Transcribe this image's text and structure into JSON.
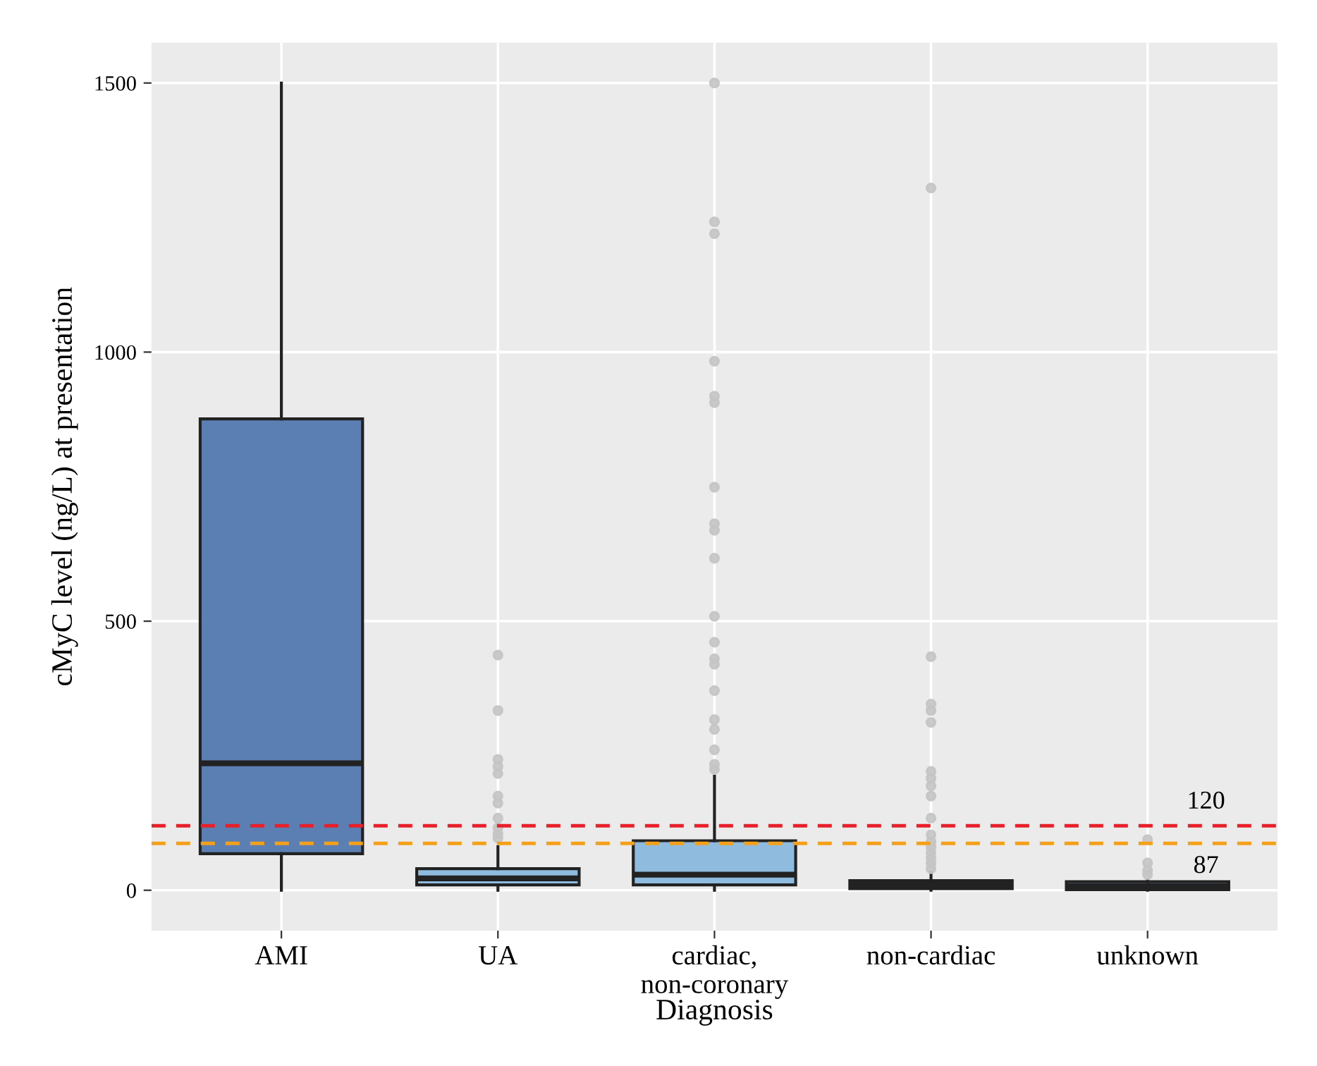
{
  "chart_data": {
    "type": "box",
    "xlabel": "Diagnosis",
    "ylabel": "cMyC level (ng/L) at presentation",
    "categories": [
      "AMI",
      "UA",
      "cardiac,\nnon-coronary",
      "non-cardiac",
      "unknown"
    ],
    "colors": [
      "#5b7fb3",
      "#8fbcde",
      "#8fbcde",
      "#8fbcde",
      "#8fbcde"
    ],
    "boxes": [
      {
        "low": 0,
        "q1": 68,
        "median": 236,
        "q3": 876,
        "high": 1500
      },
      {
        "low": 0,
        "q1": 10,
        "median": 22,
        "q3": 40,
        "high": 81,
        "outliers": [
          437,
          334,
          243,
          230,
          217,
          175,
          162,
          134,
          116,
          105,
          97
        ]
      },
      {
        "low": 0,
        "q1": 10,
        "median": 29,
        "q3": 92,
        "high": 212,
        "outliers": [
          1500,
          1242,
          1220,
          983,
          918,
          906,
          749,
          681,
          669,
          617,
          509,
          461,
          430,
          420,
          371,
          317,
          299,
          261,
          234,
          225
        ]
      },
      {
        "low": 0,
        "q1": 3,
        "median": 10,
        "q3": 18,
        "high": 33,
        "outliers": [
          1305,
          434,
          346,
          334,
          312,
          221,
          208,
          194,
          175,
          134,
          103,
          90,
          80,
          70,
          60,
          50,
          40
        ]
      },
      {
        "low": 0,
        "q1": 1,
        "median": 8,
        "q3": 16,
        "high": 20,
        "outliers": [
          94,
          51,
          37,
          29
        ]
      }
    ],
    "ylim": [
      -75,
      1575
    ],
    "yticks": [
      0,
      500,
      1000,
      1500
    ],
    "grid": true,
    "legend": false,
    "ref_lines": [
      {
        "axis": "y",
        "value": 120,
        "label": "120",
        "color": "#e8202a",
        "line_style": "dashed"
      },
      {
        "axis": "y",
        "value": 87,
        "label": "87",
        "color": "#f5a01a",
        "line_style": "dashed"
      }
    ]
  }
}
